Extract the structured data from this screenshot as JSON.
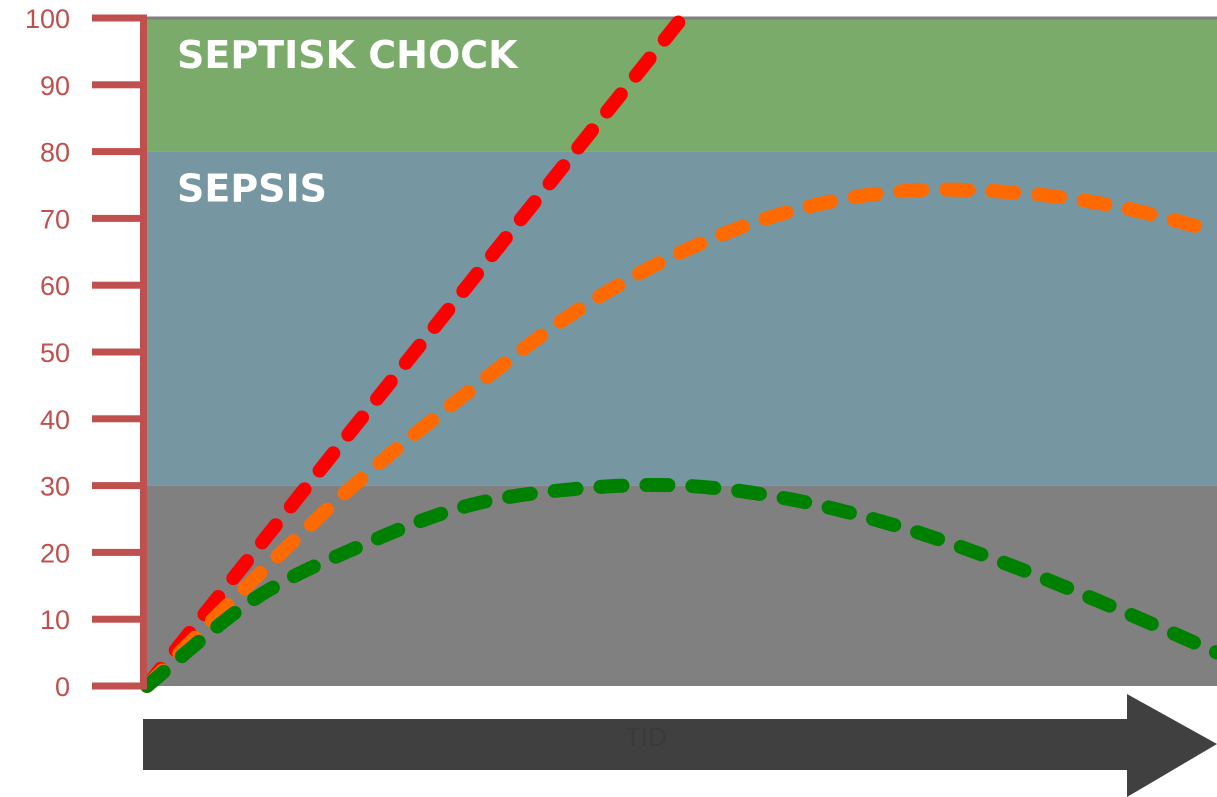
{
  "chart_data": {
    "type": "line",
    "title": "",
    "xlabel": "TID",
    "ylabel": "",
    "ylim": [
      0,
      100
    ],
    "y_ticks": [
      "0",
      "10",
      "20",
      "30",
      "40",
      "50",
      "60",
      "70",
      "80",
      "90",
      "100"
    ],
    "x": [
      0,
      1,
      2,
      3,
      4,
      5,
      6,
      7,
      8,
      9,
      10
    ],
    "zones": [
      {
        "label": "",
        "from": 0,
        "to": 30,
        "color": "#808080"
      },
      {
        "label": "SEPSIS",
        "from": 30,
        "to": 80,
        "color": "#7697a2"
      },
      {
        "label": "SEPTISK CHOCK",
        "from": 80,
        "to": 100,
        "color": "#7aab6a"
      }
    ],
    "series": [
      {
        "color": "#ff0000",
        "values": [
          0,
          20,
          40,
          60,
          80,
          100,
          null,
          null,
          null,
          null,
          null
        ]
      },
      {
        "color": "#ff6a00",
        "values": [
          0,
          16,
          31,
          44,
          56,
          65,
          71,
          74,
          74,
          72,
          68
        ]
      },
      {
        "color": "#008000",
        "values": [
          0,
          13,
          21,
          27,
          29.5,
          30,
          28,
          24,
          18.5,
          12,
          5
        ]
      }
    ],
    "colors": {
      "axis": "#c0504d",
      "tick_text": "#c0504d",
      "arrow": "#404040",
      "arrow_text": "#3a3a3a"
    },
    "grid": false,
    "legend": "none"
  }
}
